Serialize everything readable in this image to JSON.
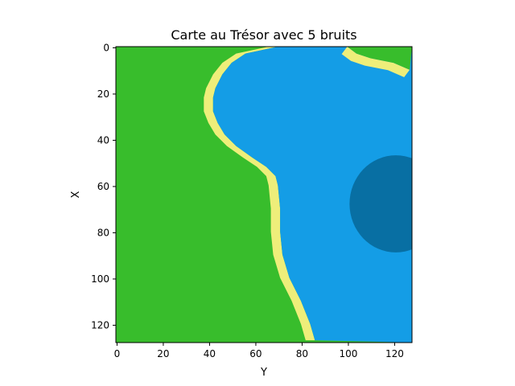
{
  "chart_data": {
    "type": "heatmap",
    "title": "Carte au Trésor avec 5 bruits",
    "xlabel": "Y",
    "ylabel": "X",
    "x_ticks": [
      0,
      20,
      40,
      60,
      80,
      100,
      120
    ],
    "y_ticks": [
      0,
      20,
      40,
      60,
      80,
      100,
      120
    ],
    "xlim": [
      0,
      127
    ],
    "ylim": [
      0,
      127
    ],
    "y_inverted": true,
    "grid": false,
    "legend": "none",
    "regions": [
      {
        "name": "grass",
        "color": "#38bd2c"
      },
      {
        "name": "sand",
        "color": "#eeee7a"
      },
      {
        "name": "shallow-water",
        "color": "#149de6"
      },
      {
        "name": "deep-water",
        "color": "#086fa3"
      }
    ],
    "shore_boundary": [
      {
        "x": 0,
        "y": 70
      },
      {
        "x": 3,
        "y": 56
      },
      {
        "x": 7,
        "y": 50
      },
      {
        "x": 12,
        "y": 46
      },
      {
        "x": 18,
        "y": 43
      },
      {
        "x": 22,
        "y": 42
      },
      {
        "x": 28,
        "y": 42
      },
      {
        "x": 33,
        "y": 44
      },
      {
        "x": 38,
        "y": 47
      },
      {
        "x": 43,
        "y": 52
      },
      {
        "x": 48,
        "y": 59
      },
      {
        "x": 52,
        "y": 65
      },
      {
        "x": 56,
        "y": 69
      },
      {
        "x": 60,
        "y": 70
      },
      {
        "x": 70,
        "y": 71
      },
      {
        "x": 80,
        "y": 71
      },
      {
        "x": 90,
        "y": 72
      },
      {
        "x": 100,
        "y": 75
      },
      {
        "x": 110,
        "y": 80
      },
      {
        "x": 120,
        "y": 84
      },
      {
        "x": 127,
        "y": 86
      }
    ],
    "shore_upper_right": [
      {
        "y": 100,
        "x": 0
      },
      {
        "y": 104,
        "x": 3
      },
      {
        "y": 110,
        "x": 5
      },
      {
        "y": 120,
        "x": 7
      },
      {
        "y": 127,
        "x": 10
      }
    ],
    "deep_water": {
      "center_x": 68,
      "center_y": 121,
      "radius_x": 21,
      "radius_y": 20
    },
    "sand_width": 4
  }
}
